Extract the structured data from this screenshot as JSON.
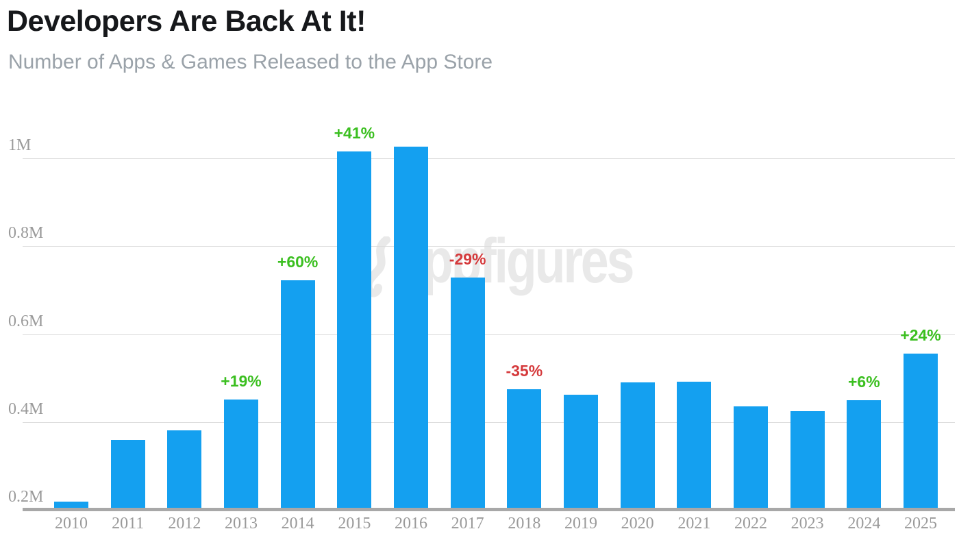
{
  "chart_data": {
    "type": "bar",
    "title": "Developers Are Back At It!",
    "subtitle": "Number of Apps & Games Released to the App Store",
    "unit": "apps released per year (millions)",
    "x": [
      "2010",
      "2011",
      "2012",
      "2013",
      "2014",
      "2015",
      "2016",
      "2017",
      "2018",
      "2019",
      "2020",
      "2021",
      "2022",
      "2023",
      "2024",
      "2025"
    ],
    "values_millions": [
      0.218,
      0.359,
      0.381,
      0.451,
      0.722,
      1.016,
      1.027,
      0.729,
      0.474,
      0.462,
      0.49,
      0.491,
      0.435,
      0.425,
      0.45,
      0.556
    ],
    "annotations": [
      {
        "year": "2013",
        "label": "+19%",
        "sentiment": "positive"
      },
      {
        "year": "2014",
        "label": "+60%",
        "sentiment": "positive"
      },
      {
        "year": "2015",
        "label": "+41%",
        "sentiment": "positive"
      },
      {
        "year": "2017",
        "label": "-29%",
        "sentiment": "negative"
      },
      {
        "year": "2018",
        "label": "-35%",
        "sentiment": "negative"
      },
      {
        "year": "2024",
        "label": "+6%",
        "sentiment": "positive"
      },
      {
        "year": "2025",
        "label": "+24%",
        "sentiment": "positive"
      }
    ],
    "yticks": [
      {
        "label": "0.2M",
        "value": 0.2
      },
      {
        "label": "0.4M",
        "value": 0.4
      },
      {
        "label": "0.6M",
        "value": 0.6
      },
      {
        "label": "0.8M",
        "value": 0.8
      },
      {
        "label": "1M",
        "value": 1.0
      }
    ],
    "ylim": [
      0.2,
      1.06
    ],
    "grid": "horizontal",
    "legend": "none"
  },
  "watermark": {
    "text": "appfigures"
  },
  "colors": {
    "bar": "#14a0f0",
    "positive": "#3bbf20",
    "negative": "#d53a3c",
    "grid": "#dddddd",
    "axis": "#a8a8a8",
    "tick_text": "#9a9a9a",
    "title_text": "#16181b",
    "subtitle_text": "#9aa2a9",
    "watermark": "#e9e9e9",
    "background": "#ffffff"
  }
}
